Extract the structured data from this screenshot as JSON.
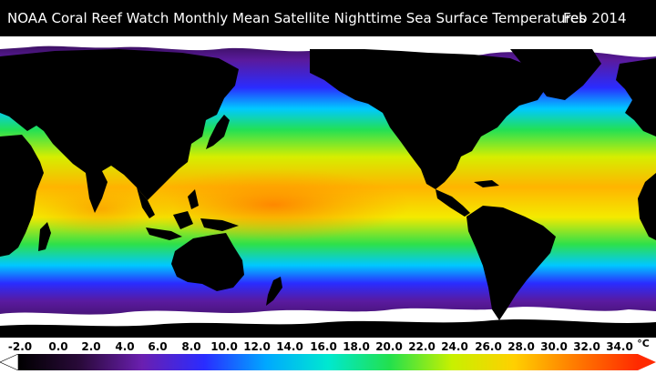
{
  "title": {
    "left": "NOAA Coral Reef Watch Monthly Mean Satellite Nighttime Sea Surface Temperatures",
    "right": "Feb 2014"
  },
  "legend": {
    "unit": "°C",
    "ticks": [
      "-2.0",
      "0.0",
      "2.0",
      "4.0",
      "6.0",
      "8.0",
      "10.0",
      "12.0",
      "14.0",
      "16.0",
      "18.0",
      "20.0",
      "22.0",
      "24.0",
      "26.0",
      "28.0",
      "30.0",
      "32.0",
      "34.0"
    ],
    "colors": {
      "land": "#000000",
      "ice": "#ffffff",
      "cold": "#2b0b3d",
      "purple": "#6a1fb0",
      "blue": "#1e2bff",
      "cyan": "#00d7ff",
      "green": "#23e04d",
      "yellow": "#e8f000",
      "orange": "#ff9e00",
      "red": "#ff2a00"
    }
  }
}
